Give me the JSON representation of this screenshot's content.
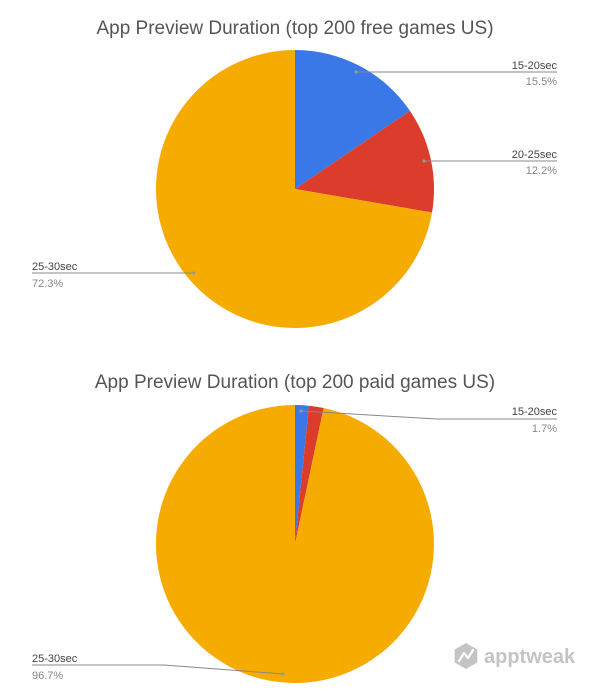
{
  "chart_data": [
    {
      "type": "pie",
      "title": "App Preview Duration (top 200 free games US)",
      "slices": [
        {
          "label": "15-20sec",
          "value": 15.5,
          "display": "15.5%",
          "color": "#3b78e7"
        },
        {
          "label": "20-25sec",
          "value": 12.2,
          "display": "12.2%",
          "color": "#db3c2b"
        },
        {
          "label": "25-30sec",
          "value": 72.3,
          "display": "72.3%",
          "color": "#f6ab00"
        }
      ],
      "legend": "callout-labels"
    },
    {
      "type": "pie",
      "title": "App Preview Duration (top 200 paid games US)",
      "slices": [
        {
          "label": "",
          "value": 1.6,
          "display": "",
          "color": "#3b78e7"
        },
        {
          "label": "15-20sec",
          "value": 1.7,
          "display": "1.7%",
          "color": "#db3c2b"
        },
        {
          "label": "25-30sec",
          "value": 96.7,
          "display": "96.7%",
          "color": "#f6ab00"
        }
      ],
      "legend": "callout-labels"
    }
  ],
  "brand": {
    "name": "apptweak",
    "logo_icon": "apptweak-logo-icon"
  }
}
